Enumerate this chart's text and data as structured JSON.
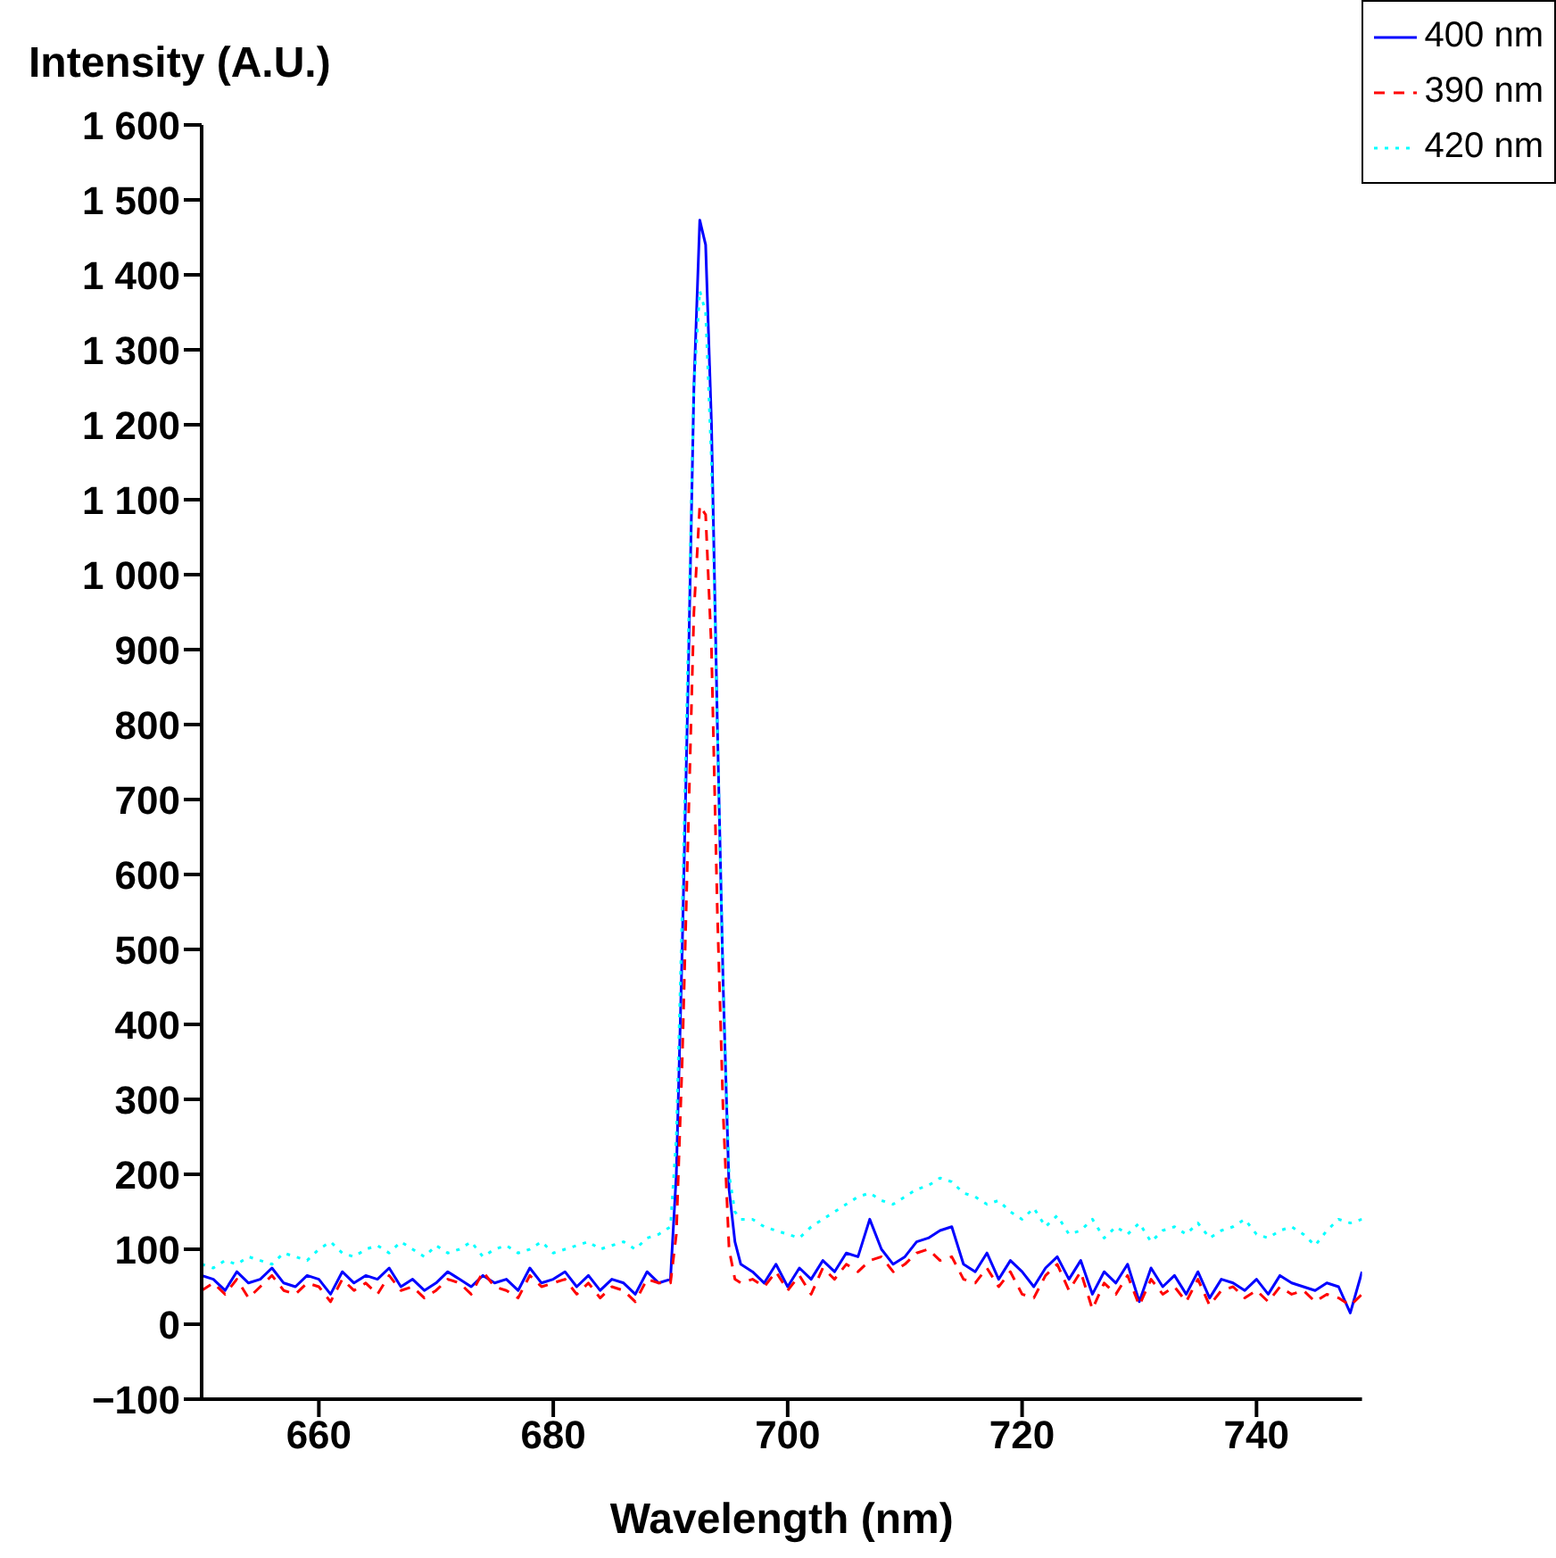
{
  "chart_data": {
    "type": "line",
    "xlabel": "Wavelength (nm)",
    "ylabel": "Intensity (A.U.)",
    "x": [
      650,
      651,
      652,
      653,
      654,
      655,
      656,
      657,
      658,
      659,
      660,
      661,
      662,
      663,
      664,
      665,
      666,
      667,
      668,
      669,
      670,
      671,
      672,
      673,
      674,
      675,
      676,
      677,
      678,
      679,
      680,
      681,
      682,
      683,
      684,
      685,
      686,
      687,
      688,
      689,
      690,
      690.5,
      691,
      691.5,
      692,
      692.5,
      693,
      693.5,
      694,
      694.5,
      695,
      695.5,
      696,
      697,
      698,
      699,
      700,
      701,
      702,
      703,
      704,
      705,
      706,
      707,
      708,
      709,
      710,
      711,
      712,
      713,
      714,
      715,
      716,
      717,
      718,
      719,
      720,
      721,
      722,
      723,
      724,
      725,
      726,
      727,
      728,
      729,
      730,
      731,
      732,
      733,
      734,
      735,
      736,
      737,
      738,
      739,
      740,
      741,
      742,
      743,
      744,
      745,
      746,
      747,
      748,
      749
    ],
    "series": [
      {
        "name": "400 nm",
        "color": "#0000ff",
        "line_style": "solid",
        "values": [
          65,
          60,
          45,
          70,
          55,
          60,
          75,
          55,
          50,
          65,
          60,
          40,
          70,
          55,
          65,
          60,
          75,
          50,
          60,
          45,
          55,
          70,
          60,
          50,
          65,
          55,
          60,
          45,
          75,
          55,
          60,
          70,
          50,
          65,
          45,
          60,
          55,
          40,
          70,
          55,
          60,
          200,
          500,
          850,
          1250,
          1473,
          1440,
          1200,
          800,
          450,
          180,
          110,
          80,
          70,
          55,
          80,
          50,
          75,
          60,
          85,
          70,
          95,
          90,
          140,
          100,
          80,
          90,
          110,
          115,
          125,
          130,
          80,
          70,
          95,
          60,
          85,
          70,
          50,
          75,
          90,
          60,
          85,
          40,
          70,
          55,
          80,
          30,
          75,
          50,
          65,
          40,
          70,
          35,
          60,
          55,
          45,
          60,
          40,
          65,
          55,
          50,
          45,
          55,
          50,
          15,
          70
        ]
      },
      {
        "name": "390 nm",
        "color": "#ff0000",
        "line_style": "dashed",
        "values": [
          45,
          55,
          40,
          60,
          35,
          50,
          65,
          45,
          40,
          55,
          50,
          30,
          60,
          45,
          55,
          40,
          65,
          45,
          50,
          35,
          45,
          60,
          55,
          40,
          70,
          50,
          45,
          35,
          65,
          50,
          55,
          60,
          40,
          55,
          35,
          50,
          45,
          30,
          60,
          55,
          55,
          120,
          350,
          650,
          950,
          1092,
          1080,
          900,
          550,
          280,
          100,
          60,
          55,
          60,
          50,
          70,
          45,
          65,
          40,
          75,
          60,
          80,
          70,
          85,
          90,
          70,
          80,
          95,
          100,
          85,
          90,
          60,
          55,
          75,
          50,
          70,
          40,
          35,
          65,
          80,
          45,
          70,
          20,
          55,
          40,
          65,
          25,
          60,
          40,
          50,
          30,
          60,
          25,
          45,
          50,
          35,
          45,
          30,
          50,
          40,
          45,
          30,
          40,
          35,
          25,
          40
        ]
      },
      {
        "name": "420 nm",
        "color": "#00ffff",
        "line_style": "dotted",
        "values": [
          80,
          75,
          85,
          80,
          90,
          85,
          80,
          95,
          90,
          85,
          100,
          110,
          95,
          90,
          100,
          105,
          95,
          110,
          100,
          90,
          105,
          95,
          100,
          110,
          90,
          100,
          105,
          95,
          100,
          110,
          95,
          100,
          105,
          110,
          100,
          105,
          110,
          100,
          115,
          120,
          130,
          250,
          550,
          900,
          1250,
          1379,
          1350,
          1150,
          800,
          450,
          200,
          150,
          140,
          140,
          130,
          125,
          120,
          115,
          130,
          140,
          150,
          160,
          170,
          175,
          165,
          160,
          170,
          180,
          185,
          195,
          190,
          175,
          170,
          160,
          165,
          150,
          140,
          155,
          130,
          145,
          120,
          125,
          140,
          115,
          130,
          120,
          135,
          110,
          125,
          130,
          120,
          135,
          115,
          125,
          130,
          140,
          120,
          115,
          125,
          130,
          120,
          105,
          125,
          140,
          135,
          140
        ]
      }
    ],
    "xlim": [
      650,
      749
    ],
    "xticks": [
      660,
      680,
      700,
      720,
      740
    ],
    "ylim": [
      -100,
      1600
    ],
    "yticks": [
      {
        "value": -100,
        "label": "−100"
      },
      0,
      100,
      200,
      300,
      400,
      500,
      600,
      700,
      800,
      900,
      {
        "value": 1000,
        "label": "1 000"
      },
      {
        "value": 1100,
        "label": "1 100"
      },
      {
        "value": 1200,
        "label": "1 200"
      },
      {
        "value": 1300,
        "label": "1 300"
      },
      {
        "value": 1400,
        "label": "1 400"
      },
      {
        "value": 1500,
        "label": "1 500"
      },
      {
        "value": 1600,
        "label": "1 600"
      }
    ],
    "grid": false,
    "legend": "top right",
    "marker": "none"
  }
}
